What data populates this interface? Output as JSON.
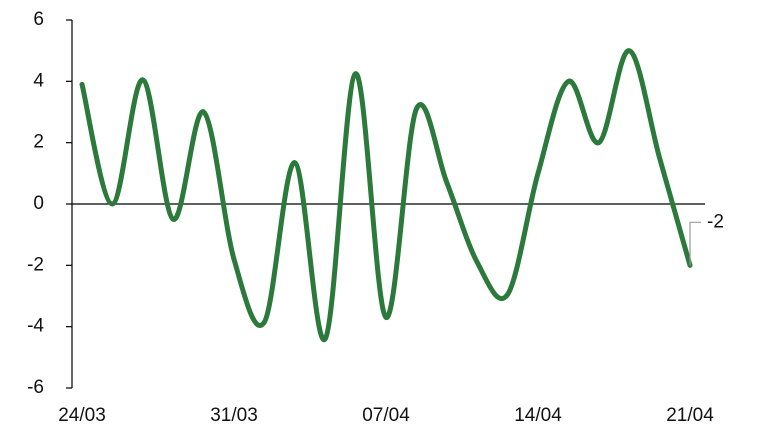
{
  "chart_data": {
    "type": "line",
    "categories": [
      "24/03",
      null,
      null,
      null,
      null,
      "31/03",
      null,
      null,
      null,
      null,
      "07/04",
      null,
      null,
      null,
      null,
      "14/04",
      null,
      null,
      null,
      null,
      "21/04"
    ],
    "values": [
      3.9,
      0,
      4.05,
      -0.5,
      3,
      -1.8,
      -3.85,
      1.35,
      -4.4,
      4.25,
      -3.7,
      3.1,
      0.7,
      -1.9,
      -2.95,
      1,
      4,
      2,
      5,
      1.5,
      -2
    ],
    "color": "#2b7a3b",
    "ylim": [
      -6,
      6
    ],
    "yticks": [
      -6,
      -4,
      -2,
      0,
      2,
      4,
      6
    ]
  }
}
